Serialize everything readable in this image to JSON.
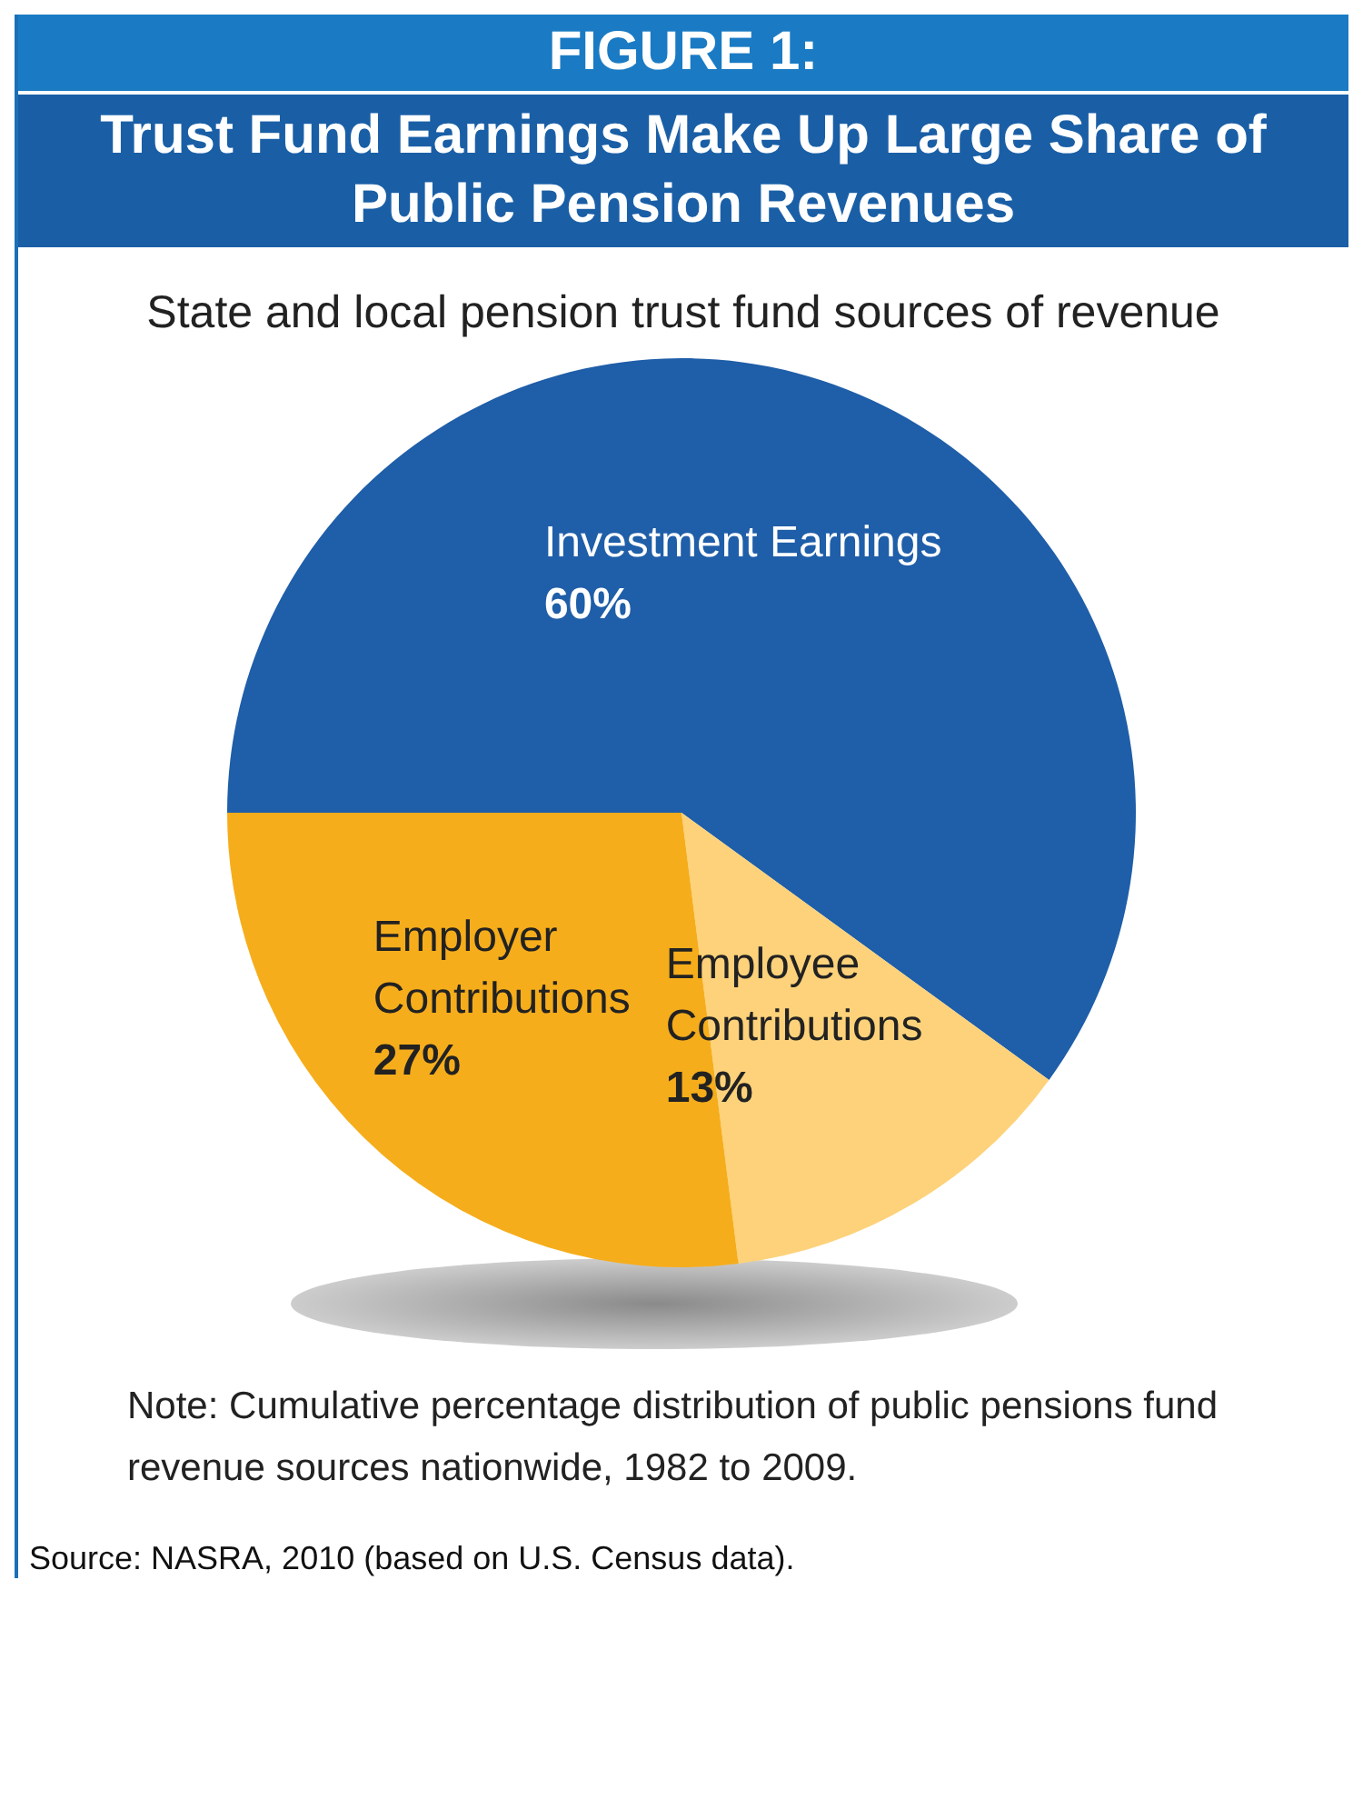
{
  "chart_data": {
    "type": "pie",
    "title": "Trust Fund Earnings Make Up Large Share of Public Pension Revenues",
    "subtitle": "State and local pension trust fund sources of revenue",
    "categories": [
      "Investment Earnings",
      "Employee Contributions",
      "Employer Contributions"
    ],
    "values": [
      60,
      13,
      27
    ],
    "value_labels": [
      "60%",
      "13%",
      "27%"
    ],
    "colors": [
      "#1f5ea8",
      "#fdd27a",
      "#f6ad1b"
    ],
    "annotations": [
      "FIGURE 1:",
      "Note: Cumulative percentage distribution of public pensions fund revenue sources nationwide, 1982 to 2009.",
      "Source: NASRA, 2010 (based on U.S. Census data)."
    ]
  }
}
